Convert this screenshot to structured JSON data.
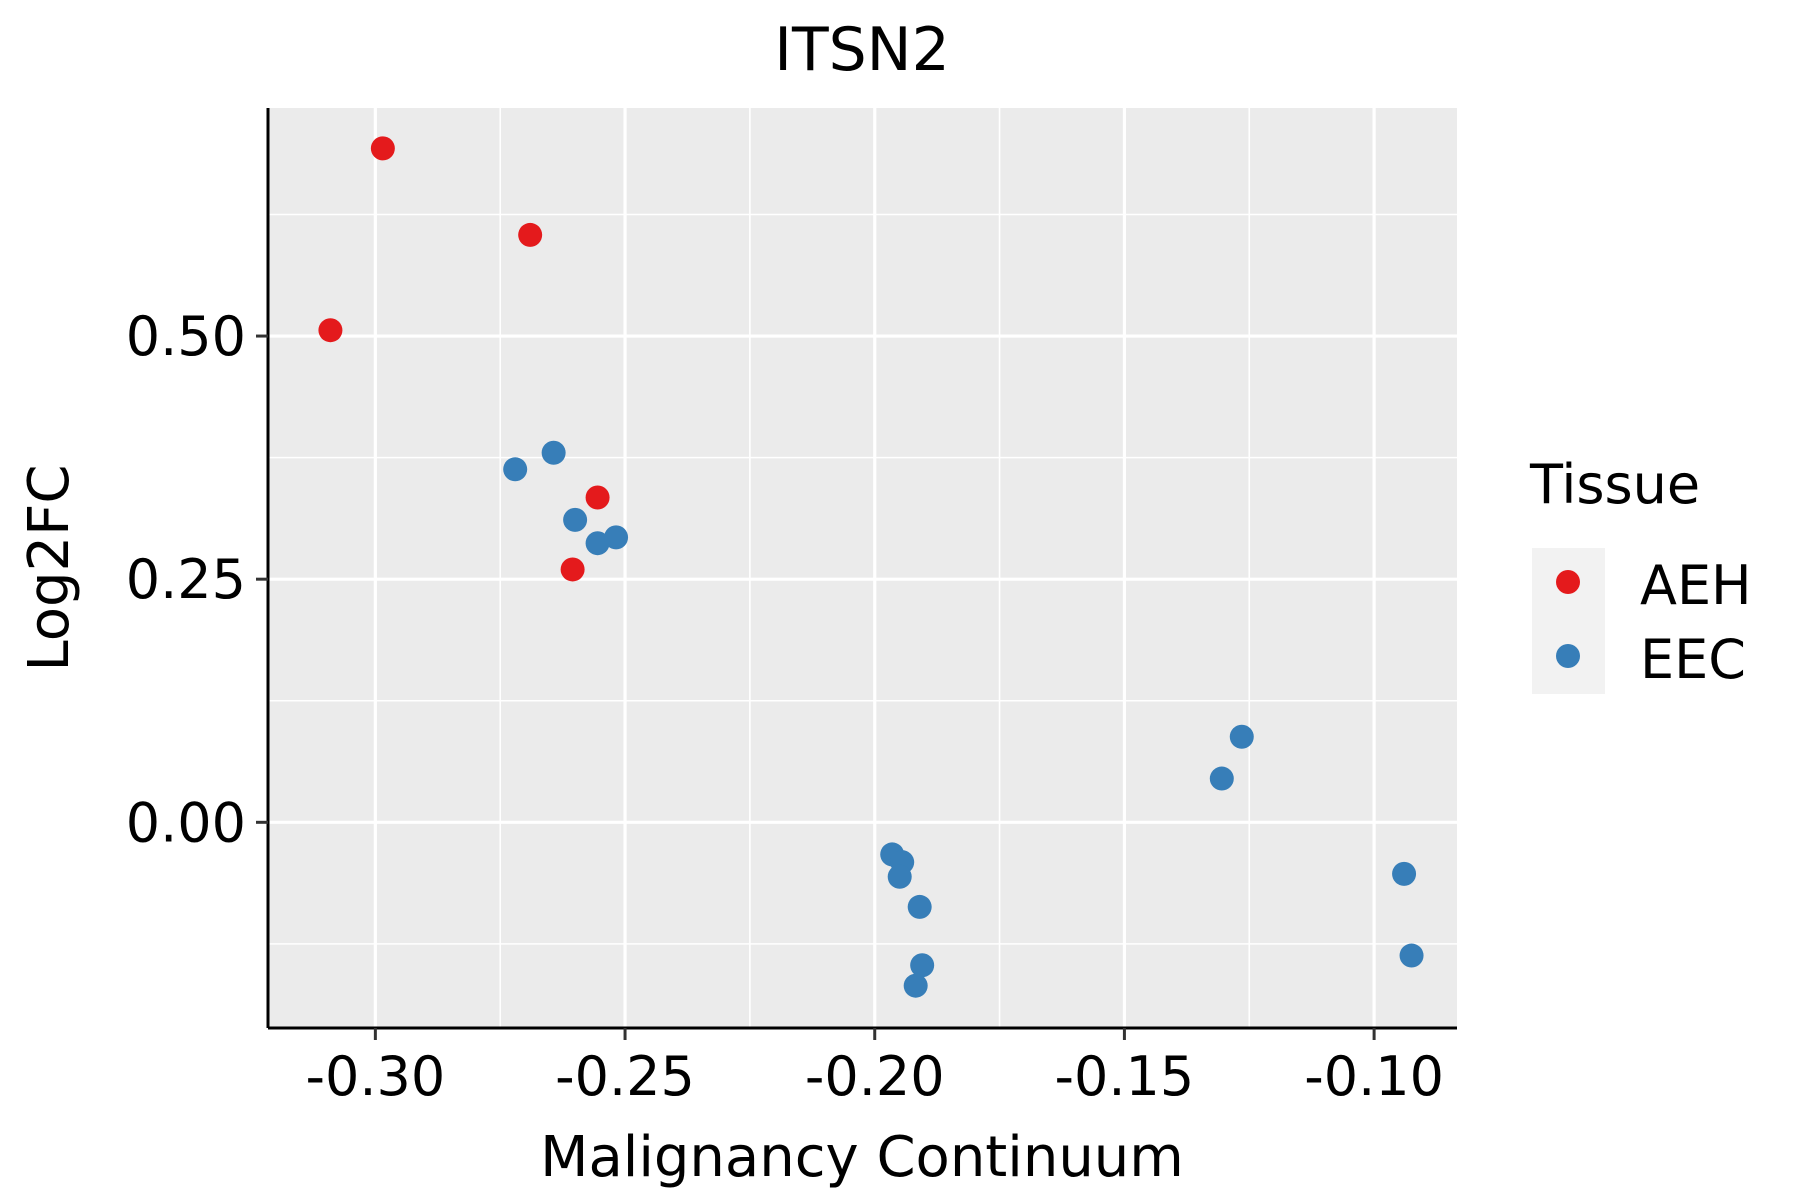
{
  "chart_data": {
    "type": "scatter",
    "title": "ITSN2",
    "xlabel": "Malignancy Continuum",
    "ylabel": "Log2FC",
    "xlim": [
      -0.3215,
      -0.0834
    ],
    "ylim": [
      -0.2115,
      0.7345
    ],
    "x_ticks": [
      -0.3,
      -0.25,
      -0.2,
      -0.15,
      -0.1
    ],
    "x_tick_labels": [
      "-0.30",
      "-0.25",
      "-0.20",
      "-0.15",
      "-0.10"
    ],
    "y_ticks": [
      0.0,
      0.25,
      0.5
    ],
    "y_tick_labels": [
      "0.00",
      "0.25",
      "0.50"
    ],
    "grid": true,
    "legend": {
      "title": "Tissue",
      "placement": "right",
      "entries": [
        {
          "label": "AEH",
          "color": "#e41a1c"
        },
        {
          "label": "EEC",
          "color": "#377eb8"
        }
      ]
    },
    "series": [
      {
        "name": "AEH",
        "color": "#e41a1c",
        "points": [
          {
            "x": -0.2985,
            "y": 0.693
          },
          {
            "x": -0.309,
            "y": 0.506
          },
          {
            "x": -0.269,
            "y": 0.604
          },
          {
            "x": -0.2555,
            "y": 0.334
          },
          {
            "x": -0.2605,
            "y": 0.26
          }
        ]
      },
      {
        "name": "EEC",
        "color": "#377eb8",
        "points": [
          {
            "x": -0.272,
            "y": 0.363
          },
          {
            "x": -0.2643,
            "y": 0.38
          },
          {
            "x": -0.26,
            "y": 0.311
          },
          {
            "x": -0.2555,
            "y": 0.287
          },
          {
            "x": -0.2518,
            "y": 0.293
          },
          {
            "x": -0.1965,
            "y": -0.033
          },
          {
            "x": -0.1945,
            "y": -0.041
          },
          {
            "x": -0.195,
            "y": -0.056
          },
          {
            "x": -0.191,
            "y": -0.087
          },
          {
            "x": -0.1905,
            "y": -0.147
          },
          {
            "x": -0.1918,
            "y": -0.168
          },
          {
            "x": -0.1305,
            "y": 0.045
          },
          {
            "x": -0.1265,
            "y": 0.088
          },
          {
            "x": -0.094,
            "y": -0.053
          },
          {
            "x": -0.0925,
            "y": -0.137
          }
        ]
      }
    ]
  }
}
